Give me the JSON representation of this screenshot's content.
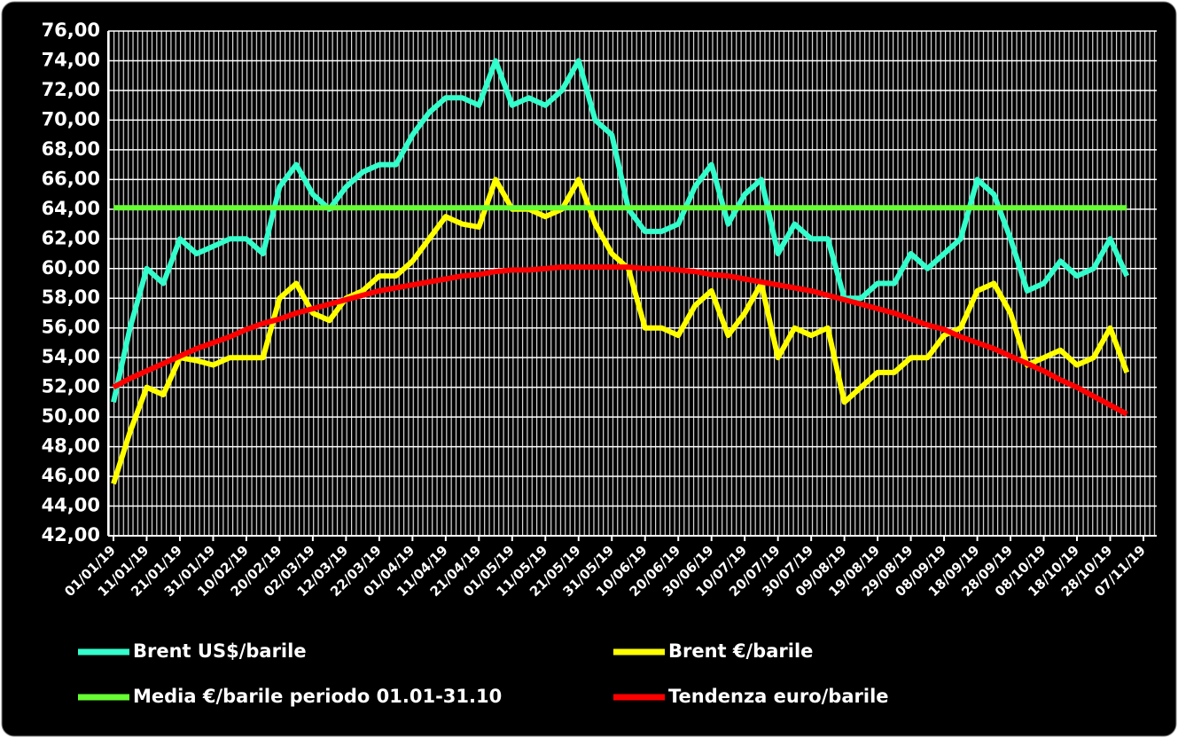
{
  "chart_data": {
    "type": "line",
    "categories": [
      "01/01/19",
      null,
      "11/01/19",
      null,
      "21/01/19",
      null,
      "31/01/19",
      null,
      "10/02/19",
      null,
      "20/02/19",
      null,
      "02/03/19",
      null,
      "12/03/19",
      null,
      "22/03/19",
      null,
      "01/04/19",
      null,
      "11/04/19",
      null,
      "21/04/19",
      null,
      "01/05/19",
      null,
      "11/05/19",
      null,
      "21/05/19",
      null,
      "31/05/19",
      null,
      "10/06/19",
      null,
      "20/06/19",
      null,
      "30/06/19",
      null,
      "10/07/19",
      null,
      "20/07/19",
      null,
      "30/07/19",
      null,
      "09/08/19",
      null,
      "19/08/19",
      null,
      "29/08/19",
      null,
      "08/09/19",
      null,
      "18/09/19",
      null,
      "28/09/19",
      null,
      "08/10/19",
      null,
      "18/10/19",
      null,
      "28/10/19",
      null,
      "07/11/19"
    ],
    "series": [
      {
        "name": "Brent US$/barile",
        "color": "#33ffcc",
        "values": [
          51,
          56,
          60,
          59,
          62,
          61,
          61.5,
          62,
          62,
          61,
          65.5,
          67,
          65,
          64,
          65.5,
          66.5,
          67,
          67,
          69,
          70.5,
          71.5,
          71.5,
          71,
          74,
          71,
          71.5,
          71,
          72,
          74,
          70,
          69,
          64,
          62.5,
          62.5,
          63,
          65.5,
          67,
          63,
          65,
          66,
          61,
          63,
          62,
          62,
          58,
          58,
          59,
          59,
          61,
          60,
          61,
          62,
          66,
          65,
          62,
          58.5,
          59,
          60.5,
          59.5,
          60,
          62,
          59.5,
          null
        ]
      },
      {
        "name": "Brent €/barile",
        "color": "#ffff00",
        "values": [
          45.5,
          49,
          52,
          51.5,
          54,
          53.8,
          53.5,
          54,
          54,
          54,
          58,
          59,
          57,
          56.5,
          58,
          58.5,
          59.5,
          59.5,
          60.5,
          62,
          63.5,
          63,
          62.8,
          66,
          64,
          64,
          63.5,
          64,
          66,
          63,
          61,
          60,
          56,
          56,
          55.5,
          57.5,
          58.5,
          55.5,
          57,
          59,
          54,
          56,
          55.5,
          56,
          51,
          52,
          53,
          53,
          54,
          54,
          55.5,
          56,
          58.5,
          59,
          57,
          53.5,
          54,
          54.5,
          53.5,
          54,
          56,
          53,
          null
        ]
      },
      {
        "name": "Media €/barile periodo 01.01-31.10",
        "color": "#66ff33",
        "values": [
          64.1,
          64.1,
          64.1,
          64.1,
          64.1,
          64.1,
          64.1,
          64.1,
          64.1,
          64.1,
          64.1,
          64.1,
          64.1,
          64.1,
          64.1,
          64.1,
          64.1,
          64.1,
          64.1,
          64.1,
          64.1,
          64.1,
          64.1,
          64.1,
          64.1,
          64.1,
          64.1,
          64.1,
          64.1,
          64.1,
          64.1,
          64.1,
          64.1,
          64.1,
          64.1,
          64.1,
          64.1,
          64.1,
          64.1,
          64.1,
          64.1,
          64.1,
          64.1,
          64.1,
          64.1,
          64.1,
          64.1,
          64.1,
          64.1,
          64.1,
          64.1,
          64.1,
          64.1,
          64.1,
          64.1,
          64.1,
          64.1,
          64.1,
          64.1,
          64.1,
          64.1,
          64.1,
          null
        ]
      },
      {
        "name": "Tendenza euro/barile",
        "color": "#ff0000",
        "values": [
          52.0,
          52.6,
          53.1,
          53.6,
          54.1,
          54.6,
          55.0,
          55.4,
          55.9,
          56.3,
          56.6,
          57.0,
          57.3,
          57.6,
          57.9,
          58.2,
          58.5,
          58.7,
          58.9,
          59.1,
          59.3,
          59.5,
          59.6,
          59.8,
          59.9,
          59.9,
          60.0,
          60.1,
          60.1,
          60.1,
          60.1,
          60.1,
          60.0,
          60.0,
          59.9,
          59.8,
          59.6,
          59.5,
          59.3,
          59.1,
          58.9,
          58.7,
          58.5,
          58.2,
          57.9,
          57.6,
          57.3,
          57.0,
          56.6,
          56.2,
          55.9,
          55.4,
          55.0,
          54.6,
          54.1,
          53.6,
          53.1,
          52.5,
          52.0,
          51.4,
          50.8,
          50.2,
          null
        ]
      }
    ],
    "ylim": [
      42,
      76
    ],
    "yticks": [
      {
        "value": 42,
        "label": "42,00"
      },
      {
        "value": 44,
        "label": "44,00"
      },
      {
        "value": 46,
        "label": "46,00"
      },
      {
        "value": 48,
        "label": "48,00"
      },
      {
        "value": 50,
        "label": "50,00"
      },
      {
        "value": 52,
        "label": "52,00"
      },
      {
        "value": 54,
        "label": "54,00"
      },
      {
        "value": 56,
        "label": "56,00"
      },
      {
        "value": 58,
        "label": "58,00"
      },
      {
        "value": 60,
        "label": "60,00"
      },
      {
        "value": 62,
        "label": "62,00"
      },
      {
        "value": 64,
        "label": "64,00"
      },
      {
        "value": 66,
        "label": "66,00"
      },
      {
        "value": 68,
        "label": "68,00"
      },
      {
        "value": 70,
        "label": "70,00"
      },
      {
        "value": 72,
        "label": "72,00"
      },
      {
        "value": 74,
        "label": "74,00"
      },
      {
        "value": 76,
        "label": "76,00"
      }
    ],
    "grid": true,
    "legend": "bottom"
  }
}
